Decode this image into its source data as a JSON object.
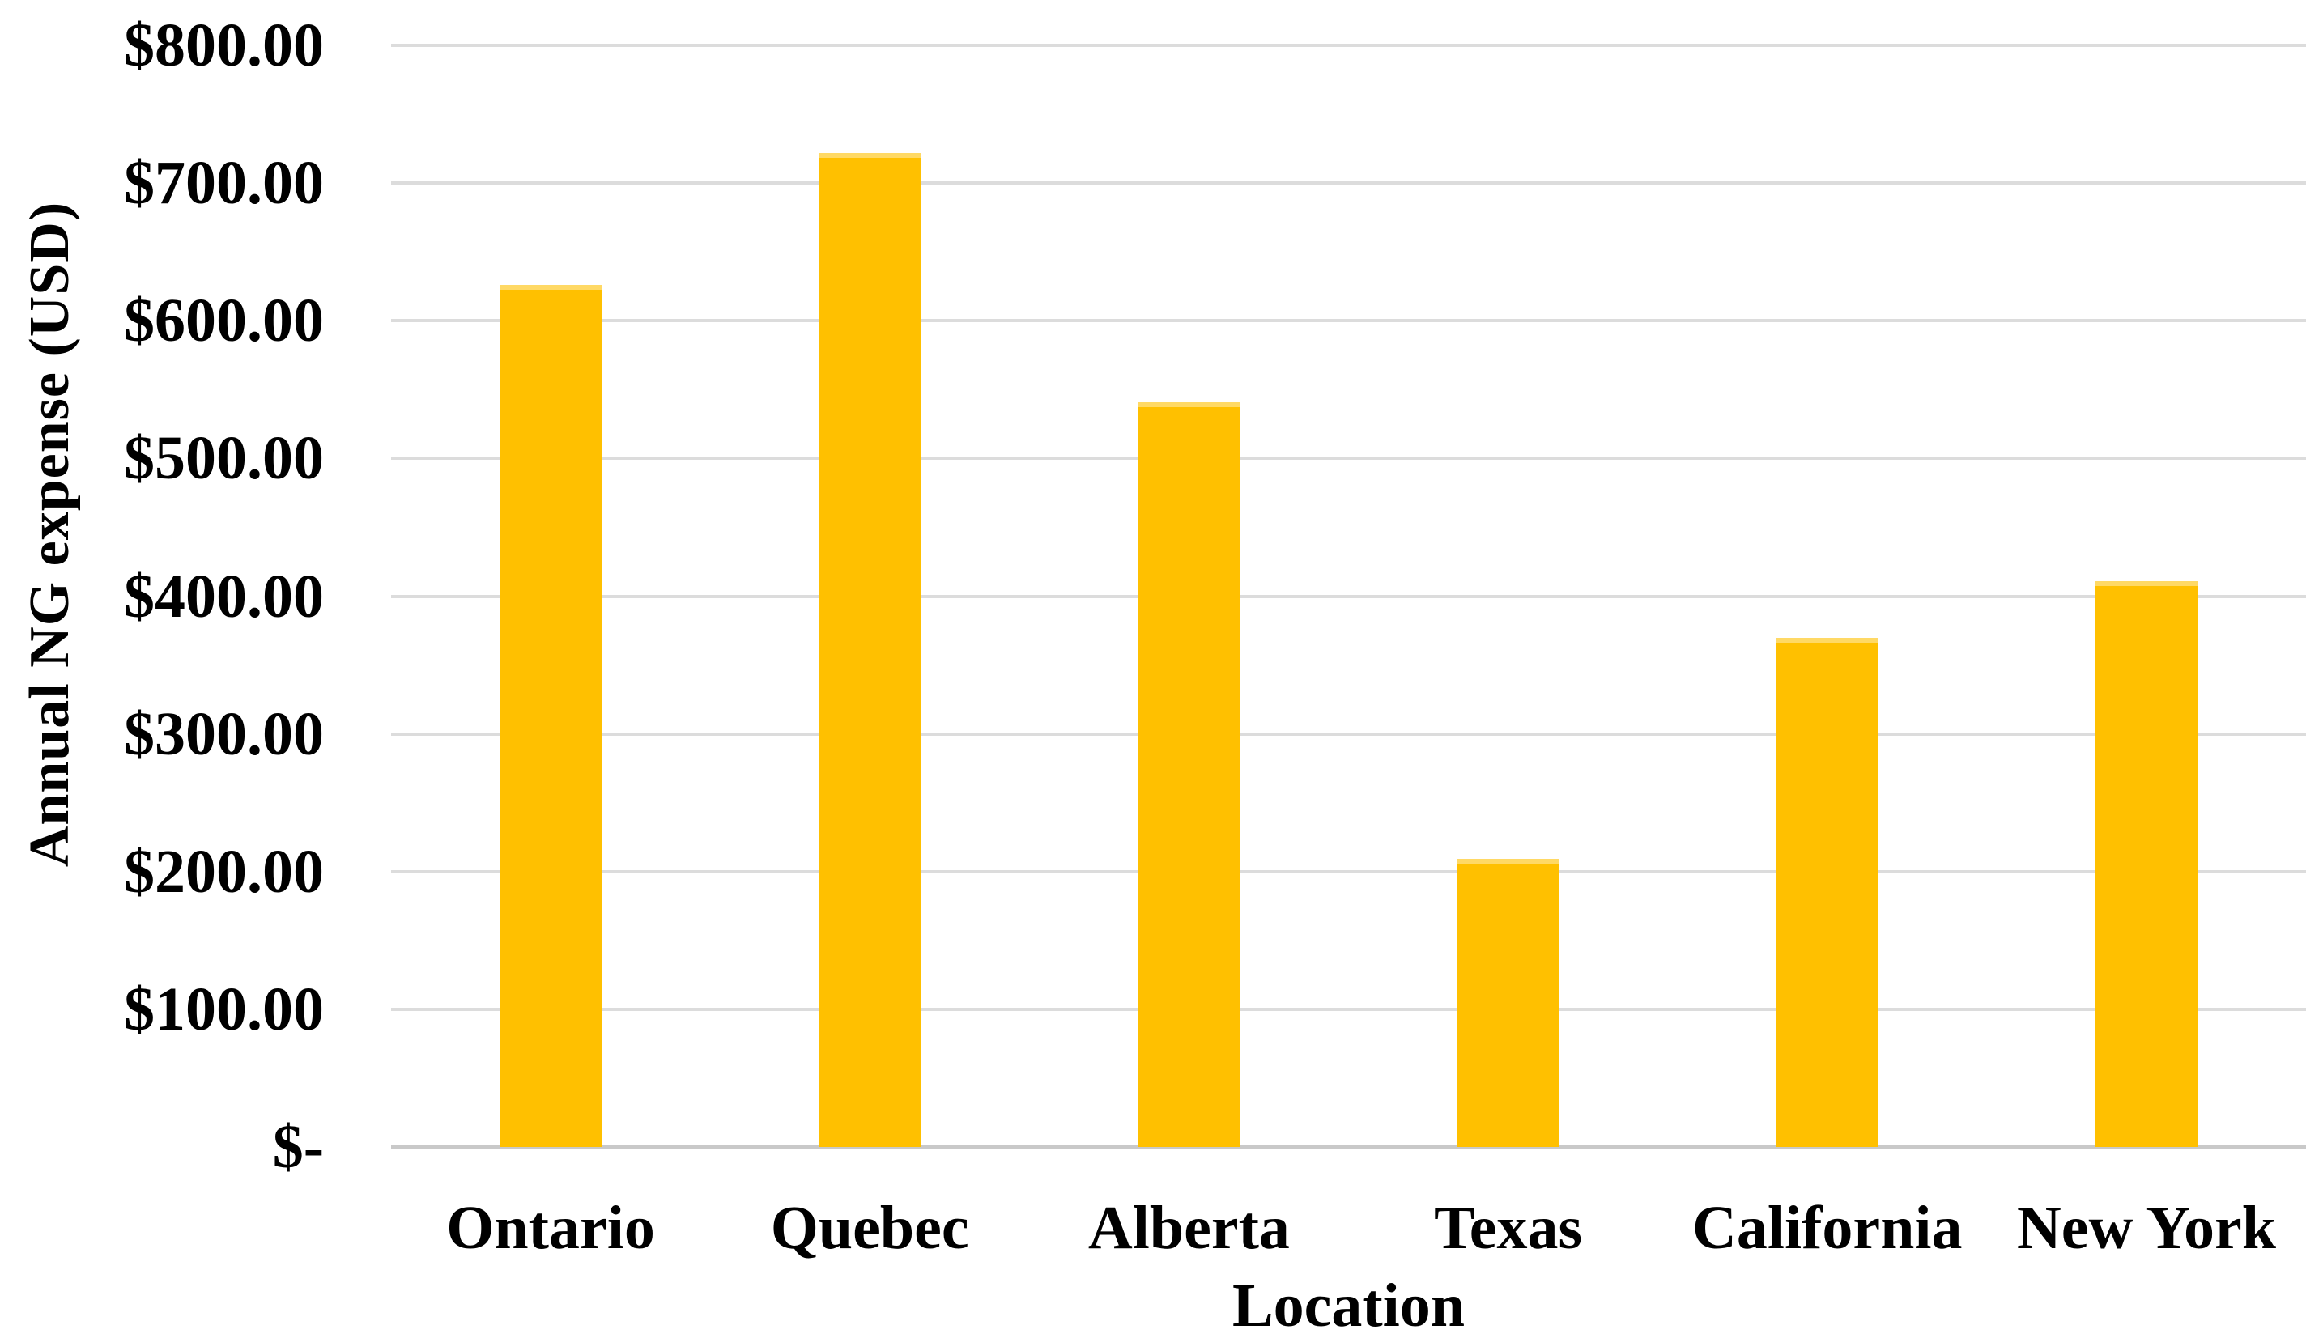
{
  "chart_data": {
    "type": "bar",
    "title": "",
    "categories": [
      "Ontario",
      "Quebec",
      "Alberta",
      "Texas",
      "California",
      "New York"
    ],
    "values": [
      626,
      722,
      541,
      209,
      370,
      411
    ],
    "xlabel": "Location",
    "ylabel": "Annual NG expense (USD)",
    "ylim": [
      0,
      800
    ],
    "ytick_step": 100,
    "ytick_labels": [
      "$-",
      "$100.00",
      "$200.00",
      "$300.00",
      "$400.00",
      "$500.00",
      "$600.00",
      "$700.00",
      "$800.00"
    ],
    "grid": true,
    "legend": false,
    "bar_color": "#FFC000",
    "bar_top_edge_color": "#FFD965",
    "gridline_color": "#DCDCDC",
    "axis_line_color": "#C9C9C9",
    "text_color": "#000000",
    "background_color": "#FFFFFF"
  }
}
